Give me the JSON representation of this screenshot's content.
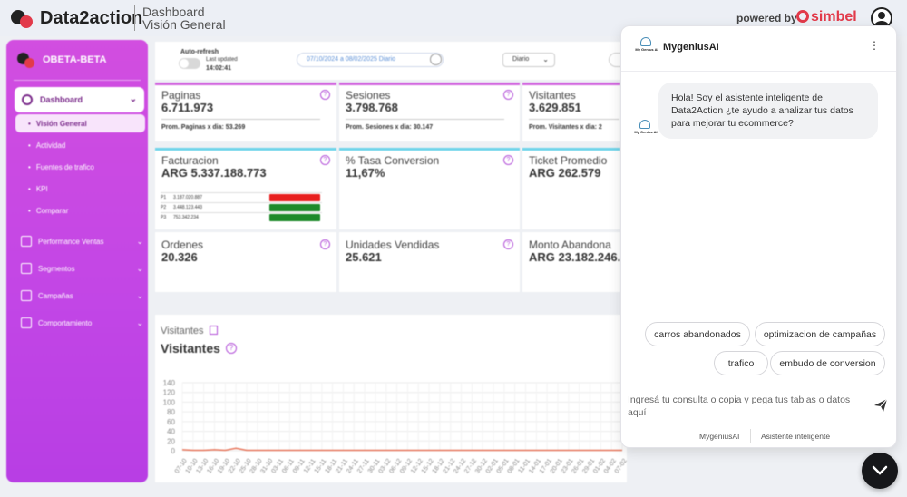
{
  "header": {
    "brand": "Data2action",
    "title": "Dashboard",
    "subtitle": "Visión General",
    "powered_by": "powered by",
    "partner": "simbel"
  },
  "sidebar": {
    "account": "OBETA-BETA",
    "main_item": "Dashboard",
    "sub_items": [
      {
        "label": "Visión General",
        "active": true
      },
      {
        "label": "Actividad",
        "active": false
      },
      {
        "label": "Fuentes de trafico",
        "active": false
      },
      {
        "label": "KPI",
        "active": false
      },
      {
        "label": "Comparar",
        "active": false
      }
    ],
    "groups": [
      {
        "label": "Performance Ventas",
        "icon": "bar-chart-icon"
      },
      {
        "label": "Segmentos",
        "icon": "document-icon"
      },
      {
        "label": "Campañas",
        "icon": "megaphone-icon"
      },
      {
        "label": "Comportamiento",
        "icon": "screens-icon"
      }
    ]
  },
  "filters": {
    "auto_refresh_label": "Auto-refresh",
    "last_updated_label": "Last updated",
    "last_updated_time": "14:02:41",
    "date_range": "07/10/2024 a 08/02/2025 Diario",
    "granularity": "Diario"
  },
  "kpis": {
    "paginas": {
      "title": "Paginas",
      "value": "6.711.973",
      "sub": "Prom. Paginas x dia: 53.269"
    },
    "sesiones": {
      "title": "Sesiones",
      "value": "3.798.768",
      "sub": "Prom. Sesiones x dia: 30.147"
    },
    "visitantes": {
      "title": "Visitantes",
      "value": "3.629.851",
      "sub": "Prom. Visitantes x dia: 2"
    },
    "facturacion": {
      "title": "Facturacion",
      "value": "ARG 5.337.188.773",
      "rows": [
        {
          "k": "P1",
          "v": "3.187.020.887",
          "color": "#e8201f"
        },
        {
          "k": "P2",
          "v": "3.448.123.443",
          "color": "#1d8a2a"
        },
        {
          "k": "P3",
          "v": "753.342.234",
          "color": "#1d8a2a"
        }
      ]
    },
    "conversion": {
      "title": "% Tasa Conversion",
      "value": "11,67%"
    },
    "ticket": {
      "title": "Ticket Promedio",
      "value": "ARG 262.579"
    },
    "ordenes": {
      "title": "Ordenes",
      "value": "20.326"
    },
    "unidades": {
      "title": "Unidades Vendidas",
      "value": "25.621"
    },
    "abandonado": {
      "title": "Monto Abandona",
      "value": "ARG 23.182.246."
    },
    "help_glyph": "?"
  },
  "visitors_chart": {
    "section_label": "Visitantes",
    "title": "Visitantes",
    "help_glyph": "?",
    "chart_data": {
      "type": "line",
      "title": "Visitantes",
      "yticks": [
        140,
        120,
        100,
        80,
        60,
        40,
        20,
        0
      ],
      "ylim": [
        0,
        140
      ],
      "x": [
        "07-10",
        "10-10",
        "13-10",
        "16-10",
        "19-10",
        "22-10",
        "25-10",
        "28-10",
        "31-10",
        "03-11",
        "06-11",
        "09-11",
        "12-11",
        "15-11",
        "18-11",
        "21-11",
        "24-11",
        "27-11",
        "30-11",
        "03-12",
        "06-12",
        "09-12",
        "12-12",
        "15-12",
        "18-12",
        "21-12",
        "24-12",
        "27-12",
        "30-12",
        "02-01",
        "05-01",
        "08-01",
        "11-01",
        "14-01",
        "17-01",
        "20-01",
        "23-01",
        "26-01",
        "29-01",
        "01-02",
        "04-02",
        "07-02"
      ],
      "series": [
        {
          "values": [
            2,
            1,
            1,
            2,
            1,
            5,
            1,
            1,
            1,
            1,
            1,
            1,
            1,
            1,
            1,
            1,
            1,
            1,
            1,
            1,
            1,
            1,
            1,
            1,
            1,
            1,
            1,
            1,
            1,
            1,
            1,
            1,
            1,
            1,
            1,
            1,
            1,
            1,
            1,
            1,
            1,
            1
          ],
          "color": "#e8795f"
        }
      ],
      "grid": true
    }
  },
  "chat": {
    "bot_name": "MygeniusAI",
    "bot_logo_text": "My Genius AI",
    "menu_glyph": "⋮",
    "greeting": "Hola! Soy el asistente inteligente de Data2Action ¿te ayudo a analizar tus datos para mejorar tu ecommerce?",
    "suggestions": [
      "carros abandonados",
      "optimizacion de campañas",
      "trafico",
      "embudo de conversion"
    ],
    "input_placeholder": "Ingresá tu consulta o copia y pega tus tablas o datos aquí",
    "footer_left": "MygeniusAI",
    "footer_right": "Asistente inteligente"
  }
}
